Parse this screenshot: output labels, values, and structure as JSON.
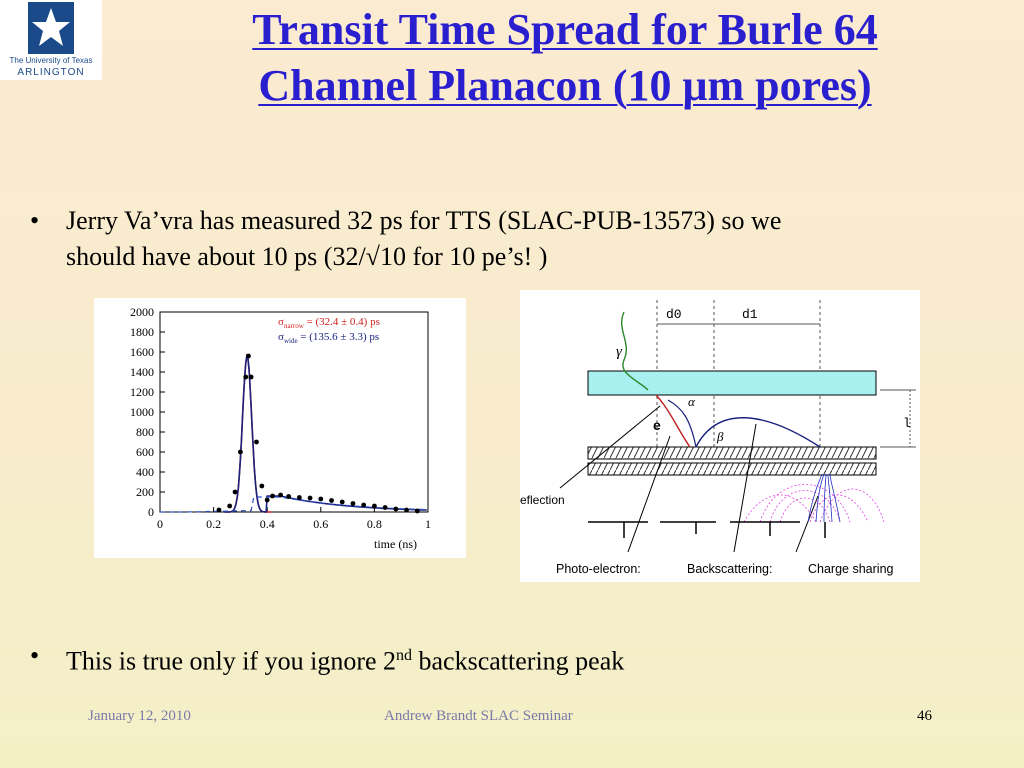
{
  "logo": {
    "line1": "The University of Texas",
    "line2": "ARLINGTON"
  },
  "slide": {
    "title_line1": "Transit Time Spread for Burle 64",
    "title_line2": "Channel Planacon (10 μm pores)",
    "bullet_glyph": "•",
    "bullet1_line1": "Jerry Va’vra has measured 32 ps for TTS (SLAC-PUB-13573) so we",
    "bullet1_line2": "should have about 10 ps  (32/√10  for 10 pe’s! )",
    "bullet2_pre": "This is true only if you ignore 2",
    "bullet2_sup": "nd",
    "bullet2_post": " backscattering peak"
  },
  "plot": {
    "sigma_narrow_label": "σ",
    "narrow_sub": "narrow",
    "narrow_value": " = (32.4 ± 0.4) ps",
    "wide_sub": "wide",
    "wide_value": " = (135.6 ± 3.3) ps",
    "xlabel": "time (ns)",
    "yticks": [
      "2000",
      "1800",
      "1600",
      "1400",
      "1200",
      "1000",
      "800",
      "600",
      "400",
      "200",
      "0"
    ],
    "xticks": [
      "0",
      "0.2",
      "0.4",
      "0.6",
      "0.8",
      "1"
    ]
  },
  "chart_data": {
    "type": "scatter",
    "xlabel": "time (ns)",
    "ylabel": "",
    "xlim": [
      0,
      1
    ],
    "ylim": [
      0,
      2000
    ],
    "x": [
      0.22,
      0.26,
      0.28,
      0.3,
      0.32,
      0.33,
      0.34,
      0.36,
      0.38,
      0.4,
      0.42,
      0.45,
      0.48,
      0.52,
      0.56,
      0.6,
      0.64,
      0.68,
      0.72,
      0.76,
      0.8,
      0.84,
      0.88,
      0.92,
      0.96
    ],
    "y": [
      20,
      60,
      200,
      600,
      1350,
      1560,
      1350,
      700,
      260,
      120,
      160,
      170,
      155,
      145,
      140,
      130,
      115,
      100,
      85,
      70,
      60,
      45,
      30,
      20,
      10
    ]
  },
  "diagram": {
    "d0": "d0",
    "d1": "d1",
    "l": "l",
    "gamma": "γ",
    "alpha": "α",
    "beta": "β",
    "e": "e",
    "deflection": "eflection",
    "photo_electron": "Photo-electron:",
    "backscattering": "Backscattering:",
    "charge_sharing": "Charge sharing"
  },
  "footer": {
    "date": "January 12, 2010",
    "center": "Andrew Brandt  SLAC  Seminar",
    "page": "46"
  }
}
